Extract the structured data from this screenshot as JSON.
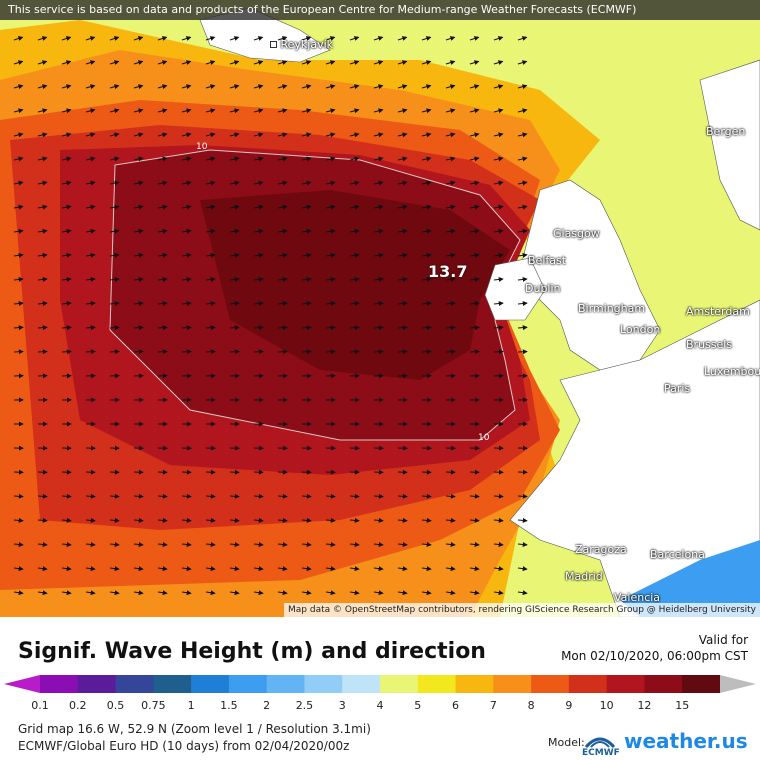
{
  "map": {
    "notice": "This service is based on data and products of the European Centre for Medium-range Weather Forecasts (ECMWF)",
    "attribution": "Map data © OpenStreetMap contributors, rendering GIScience Research Group @ Heidelberg University",
    "max_value": "13.7",
    "contour_label": "10",
    "cities": [
      "Reykjavík",
      "Bergen",
      "Glasgow",
      "Belfast",
      "Dublin",
      "Birmingham",
      "London",
      "Amsterdam",
      "Brussels",
      "Luxembourg",
      "Paris",
      "Zaragoza",
      "Barcelona",
      "Madrid",
      "Valencia"
    ]
  },
  "legend": {
    "title": "Signif. Wave Height (m) and direction",
    "valid_label": "Valid for",
    "valid_time": "Mon 02/10/2020, 06:00pm CST",
    "scale": [
      "0.1",
      "0.2",
      "0.5",
      "0.75",
      "1",
      "1.5",
      "2",
      "2.5",
      "3",
      "4",
      "5",
      "6",
      "7",
      "8",
      "9",
      "10",
      "12",
      "15"
    ],
    "colors": [
      "#8b0eb5",
      "#5b1b9a",
      "#35459a",
      "#1f5f8d",
      "#1f7fd6",
      "#3d9df0",
      "#63b4f5",
      "#91cdf6",
      "#bfe3f7",
      "#e9f575",
      "#f3e81e",
      "#f7b70f",
      "#f6901a",
      "#ec5a16",
      "#d2301b",
      "#b1151d",
      "#8c0d17",
      "#610a0f"
    ],
    "grid_info": "Grid map 16.6 W, 52.9 N (Zoom level 1 / Resolution 3.1mi)",
    "model_info": "ECMWF/Global Euro HD (10 days)  from  02/04/2020/00z",
    "model_label": "Model:",
    "model_logo": "ECMWF",
    "brand": "weather.us"
  }
}
